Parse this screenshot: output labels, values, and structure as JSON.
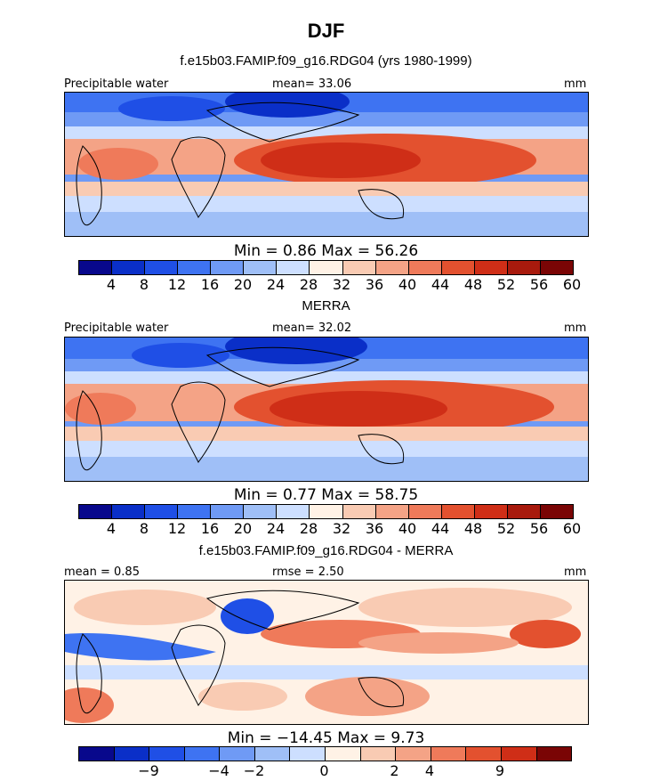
{
  "title": "DJF",
  "colors": {
    "pw_scale": [
      "#08088c",
      "#0a2fc8",
      "#1f4fe6",
      "#3e73f2",
      "#6f9af5",
      "#9fbff7",
      "#cddfff",
      "#fff2e6",
      "#f9cbb3",
      "#f4a386",
      "#ef7a5a",
      "#e3512f",
      "#cf2e17",
      "#a81a0d",
      "#7a0505"
    ],
    "diff_scale": [
      "#08088c",
      "#0a2fc8",
      "#1f4fe6",
      "#3e73f2",
      "#6f9af5",
      "#9fbff7",
      "#cddfff",
      "#fff2e6",
      "#f9cbb3",
      "#f4a386",
      "#ef7a5a",
      "#e3512f",
      "#cf2e17",
      "#7a0505"
    ],
    "coast": "#000000"
  },
  "panels": [
    {
      "subtitle": "f.e15b03.FAMIP.f09_g16.RDG04 (yrs 1980-1999)",
      "left_label": "Precipitable water",
      "center_label": "mean=   33.06",
      "right_label": "mm",
      "minmax": "Min =    0.86  Max =   56.26",
      "ticks": [
        "4",
        "8",
        "12",
        "16",
        "20",
        "24",
        "28",
        "32",
        "36",
        "40",
        "44",
        "48",
        "52",
        "56",
        "60"
      ]
    },
    {
      "subtitle": "MERRA",
      "left_label": "Precipitable water",
      "center_label": "mean=   32.02",
      "right_label": "mm",
      "minmax": "Min =    0.77  Max =   58.75",
      "ticks": [
        "4",
        "8",
        "12",
        "16",
        "20",
        "24",
        "28",
        "32",
        "36",
        "40",
        "44",
        "48",
        "52",
        "56",
        "60"
      ]
    },
    {
      "subtitle": "f.e15b03.FAMIP.f09_g16.RDG04 - MERRA",
      "left_label": "mean =    0.85",
      "center_label": "rmse =    2.50",
      "right_label": "mm",
      "minmax": "Min = −14.45  Max =    9.73",
      "ticks": [
        "−9",
        "−4",
        "−2",
        "0",
        "2",
        "4",
        "9"
      ]
    }
  ],
  "chart_data": [
    {
      "type": "heatmap",
      "title": "f.e15b03.FAMIP.f09_g16.RDG04 (yrs 1980-1999)",
      "variable": "Precipitable water",
      "units": "mm",
      "season": "DJF",
      "mean": 33.06,
      "min": 0.86,
      "max": 56.26,
      "contour_levels": [
        4,
        8,
        12,
        16,
        20,
        24,
        28,
        32,
        36,
        40,
        44,
        48,
        52,
        56,
        60
      ]
    },
    {
      "type": "heatmap",
      "title": "MERRA",
      "variable": "Precipitable water",
      "units": "mm",
      "season": "DJF",
      "mean": 32.02,
      "min": 0.77,
      "max": 58.75,
      "contour_levels": [
        4,
        8,
        12,
        16,
        20,
        24,
        28,
        32,
        36,
        40,
        44,
        48,
        52,
        56,
        60
      ]
    },
    {
      "type": "heatmap",
      "title": "f.e15b03.FAMIP.f09_g16.RDG04 - MERRA",
      "units": "mm",
      "season": "DJF",
      "mean": 0.85,
      "rmse": 2.5,
      "min": -14.45,
      "max": 9.73,
      "labeled_levels": [
        -9,
        -4,
        -2,
        0,
        2,
        4,
        9
      ]
    }
  ]
}
